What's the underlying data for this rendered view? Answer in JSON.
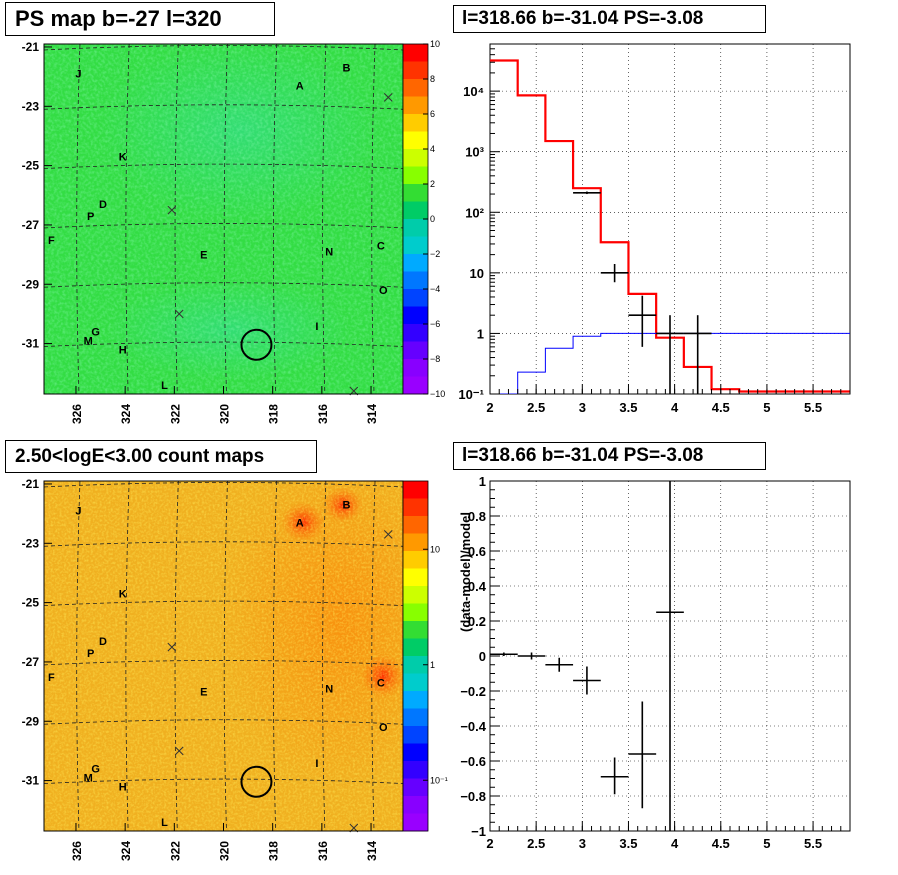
{
  "panels": {
    "psmap": {
      "title": "PS map b=-27 l=320"
    },
    "spectrum": {
      "title": "l=318.66 b=-31.04 PS=-3.08"
    },
    "countmap": {
      "title": "2.50<logE<3.00 count maps"
    },
    "ratio": {
      "title": "l=318.66 b=-31.04 PS=-3.08"
    }
  },
  "map_axes": {
    "x_ticks": [
      "326",
      "324",
      "322",
      "320",
      "318",
      "316",
      "314"
    ],
    "y_ticks": [
      "-21",
      "-23",
      "-25",
      "-27",
      "-29",
      "-31"
    ],
    "x_range": [
      327.3,
      312.7
    ],
    "y_range": [
      -20.9,
      -32.7
    ],
    "colors": {
      "psmap_bg": "#33dd44",
      "countmap_bg": "#f0b020"
    }
  },
  "sources": [
    {
      "label": "J",
      "l": 325.9,
      "b": -21.9
    },
    {
      "label": "B",
      "l": 315.0,
      "b": -21.7
    },
    {
      "label": "A",
      "l": 316.9,
      "b": -22.3
    },
    {
      "label": "K",
      "l": 324.1,
      "b": -24.7
    },
    {
      "label": "D",
      "l": 324.9,
      "b": -26.3
    },
    {
      "label": "P",
      "l": 325.4,
      "b": -26.7
    },
    {
      "label": "F",
      "l": 327.0,
      "b": -27.5
    },
    {
      "label": "E",
      "l": 320.8,
      "b": -28.0
    },
    {
      "label": "N",
      "l": 315.7,
      "b": -27.9
    },
    {
      "label": "C",
      "l": 313.6,
      "b": -27.7
    },
    {
      "label": "O",
      "l": 313.5,
      "b": -29.2
    },
    {
      "label": "I",
      "l": 316.2,
      "b": -30.4
    },
    {
      "label": "G",
      "l": 325.2,
      "b": -30.6
    },
    {
      "label": "M",
      "l": 325.5,
      "b": -30.9
    },
    {
      "label": "H",
      "l": 324.1,
      "b": -31.2
    },
    {
      "label": "L",
      "l": 322.4,
      "b": -32.4
    }
  ],
  "crosses": [
    {
      "l": 313.3,
      "b": -22.7
    },
    {
      "l": 322.1,
      "b": -26.5
    },
    {
      "l": 321.8,
      "b": -30.0
    },
    {
      "l": 314.7,
      "b": -32.6
    }
  ],
  "target": {
    "l": 318.66,
    "b": -31.04
  },
  "colorbars": {
    "psmap": {
      "labels": [
        "10",
        "8",
        "6",
        "4",
        "2",
        "0",
        "−2",
        "−4",
        "−6",
        "−8",
        "−10"
      ],
      "colors": [
        "#ff0000",
        "#ff3300",
        "#ff6600",
        "#ff9900",
        "#ffcc00",
        "#ffff00",
        "#ccff00",
        "#88ff00",
        "#33dd33",
        "#00cc66",
        "#00ccaa",
        "#00cccc",
        "#00aaff",
        "#0077ff",
        "#0044ff",
        "#0000ff",
        "#3300ff",
        "#6600ff",
        "#8800ff",
        "#9900ff"
      ]
    },
    "countmap": {
      "labels": [
        "10",
        "1",
        "10⁻¹"
      ],
      "colors": [
        "#ff0000",
        "#ff3300",
        "#ff6600",
        "#ff9900",
        "#ffcc00",
        "#ffff00",
        "#ccff00",
        "#88ff00",
        "#33dd33",
        "#00cc66",
        "#00ccaa",
        "#00cccc",
        "#00aaff",
        "#0077ff",
        "#0044ff",
        "#0000ff",
        "#3300ff",
        "#6600ff",
        "#8800ff",
        "#9900ff"
      ]
    }
  },
  "chart_data": [
    {
      "type": "line",
      "name": "spectrum",
      "title": "l=318.66 b=-31.04 PS=-3.08",
      "xlim": [
        2,
        5.9
      ],
      "ylim": [
        0.1,
        60000
      ],
      "log_y": true,
      "grid": true,
      "x_ticks": [
        "2",
        "2.5",
        "3",
        "3.5",
        "4",
        "4.5",
        "5",
        "5.5"
      ],
      "y_ticks": [
        {
          "v": 0.1,
          "label": "10⁻¹"
        },
        {
          "v": 1,
          "label": "1"
        },
        {
          "v": 10,
          "label": "10"
        },
        {
          "v": 100,
          "label": "10²"
        },
        {
          "v": 1000,
          "label": "10³"
        },
        {
          "v": 10000,
          "label": "10⁴"
        }
      ],
      "series": [
        {
          "color": "#ff0000",
          "edges": [
            2.0,
            2.3,
            2.6,
            2.9,
            3.2,
            3.5,
            3.8,
            4.1,
            4.4,
            4.7,
            5.0,
            5.3,
            5.9
          ],
          "values": [
            32000,
            8500,
            1500,
            250,
            32,
            4.5,
            0.85,
            0.28,
            0.12,
            0.11,
            0.11,
            0.11
          ]
        },
        {
          "color": "#0000ff",
          "edges": [
            2.0,
            2.3,
            2.6,
            2.9,
            3.2,
            3.5,
            3.8,
            4.1,
            4.4,
            4.7,
            5.0,
            5.3,
            5.9
          ],
          "values": [
            0.1,
            0.23,
            0.57,
            0.9,
            1.0,
            1.0,
            1.0,
            1.0,
            1.0,
            1.0,
            1.0,
            1.0
          ]
        }
      ],
      "points": [
        {
          "x": 3.05,
          "y": 210,
          "xerr": 0.15,
          "ylo": 200,
          "yhi": 220
        },
        {
          "x": 3.35,
          "y": 10,
          "xerr": 0.15,
          "ylo": 7,
          "yhi": 14
        },
        {
          "x": 3.65,
          "y": 2,
          "xerr": 0.15,
          "ylo": 0.6,
          "yhi": 4.2
        },
        {
          "x": 3.95,
          "y": 1,
          "xerr": 0.15,
          "ylo": 0.1,
          "yhi": 2
        },
        {
          "x": 4.25,
          "y": 1,
          "xerr": 0.15,
          "ylo": 0.1,
          "yhi": 2
        }
      ]
    },
    {
      "type": "scatter",
      "name": "ratio",
      "title": "l=318.66 b=-31.04 PS=-3.08",
      "ylabel": "(data-model)/model",
      "xlim": [
        2,
        5.9
      ],
      "ylim": [
        -1,
        1
      ],
      "grid": true,
      "x_ticks": [
        "2",
        "2.5",
        "3",
        "3.5",
        "4",
        "4.5",
        "5",
        "5.5"
      ],
      "y_ticks": [
        "1",
        "0.8",
        "0.6",
        "0.4",
        "0.2",
        "0",
        "−0.2",
        "−0.4",
        "−0.6",
        "−0.8",
        "−1"
      ],
      "points": [
        {
          "x": 2.15,
          "y": 0.01,
          "xerr": 0.15,
          "ylo": 0.0,
          "yhi": 0.02
        },
        {
          "x": 2.45,
          "y": 0.0,
          "xerr": 0.15,
          "ylo": -0.02,
          "yhi": 0.02
        },
        {
          "x": 2.75,
          "y": -0.05,
          "xerr": 0.15,
          "ylo": -0.09,
          "yhi": -0.01
        },
        {
          "x": 3.05,
          "y": -0.14,
          "xerr": 0.15,
          "ylo": -0.22,
          "yhi": -0.06
        },
        {
          "x": 3.35,
          "y": -0.69,
          "xerr": 0.15,
          "ylo": -0.79,
          "yhi": -0.58
        },
        {
          "x": 3.65,
          "y": -0.56,
          "xerr": 0.15,
          "ylo": -0.87,
          "yhi": -0.26
        },
        {
          "x": 3.95,
          "y": 0.25,
          "xerr": 0.15,
          "ylo": -1.0,
          "yhi": 1.0
        }
      ]
    }
  ]
}
